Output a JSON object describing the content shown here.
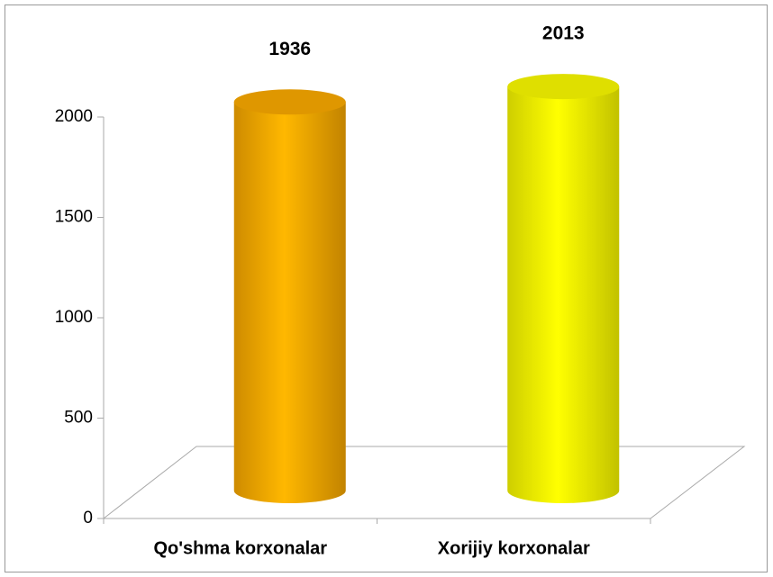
{
  "chart_data": {
    "type": "bar3d",
    "categories": [
      "Qo'shma korxonalar",
      "Xorijiy korxonalar"
    ],
    "values": [
      1936,
      2013
    ],
    "colors": [
      "#f2a400",
      "#f2f200"
    ],
    "ylim": [
      0,
      2000
    ],
    "yticks": [
      0,
      500,
      1000,
      1500,
      2000
    ],
    "grid": false
  }
}
